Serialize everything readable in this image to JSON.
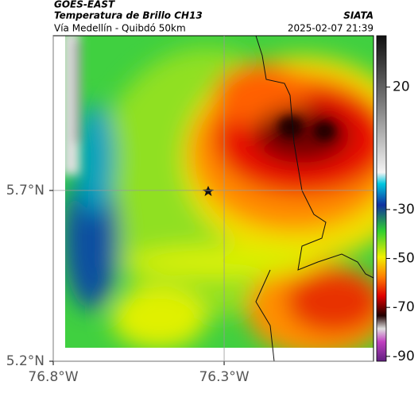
{
  "header": {
    "source": "GOES-EAST",
    "title": "Temperatura de Brillo CH13",
    "subtitle": "Vía Medellín - Quibdó 50km",
    "brand": "SIATA",
    "timestamp": "2025-02-07 21:39"
  },
  "map": {
    "xlim": [
      -76.8,
      -75.863
    ],
    "ylim": [
      5.2,
      6.153
    ],
    "xticks": [
      {
        "value": -76.8,
        "label": "76.8°W"
      },
      {
        "value": -76.3,
        "label": "76.3°W"
      }
    ],
    "yticks": [
      {
        "value": 5.2,
        "label": "5.2°N"
      },
      {
        "value": 5.7,
        "label": "5.7°N"
      }
    ],
    "grid": true
  },
  "colorbar": {
    "lim": [
      41,
      -92
    ],
    "ticks": [
      20,
      -30,
      -50,
      -70,
      -90
    ]
  }
}
